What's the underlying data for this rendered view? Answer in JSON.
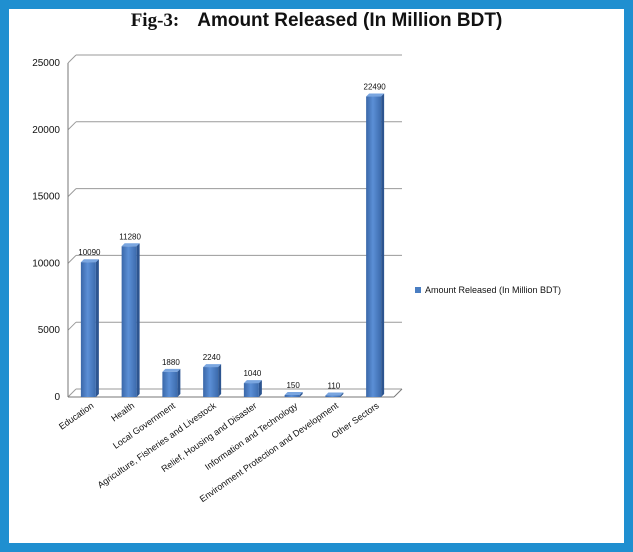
{
  "chart_data": {
    "type": "bar",
    "title_prefix": "Fig-3:",
    "title": "Amount Released (In Million BDT)",
    "categories": [
      "Education",
      "Health",
      "Local Government",
      "Agriculture, Fisheries and Livestock",
      "Relief, Housing and Disaster",
      "Information and Technology",
      "Environment Protection and Development",
      "Other Sectors"
    ],
    "series": [
      {
        "name": "Amount Released (In Million BDT)",
        "values": [
          10090,
          11280,
          1880,
          2240,
          1040,
          150,
          110,
          22490
        ],
        "color": "#4a7ec2"
      }
    ],
    "yticks": [
      0,
      5000,
      10000,
      15000,
      20000,
      25000
    ],
    "ylim": [
      0,
      25000
    ],
    "grid": true,
    "legend_position": "right"
  }
}
